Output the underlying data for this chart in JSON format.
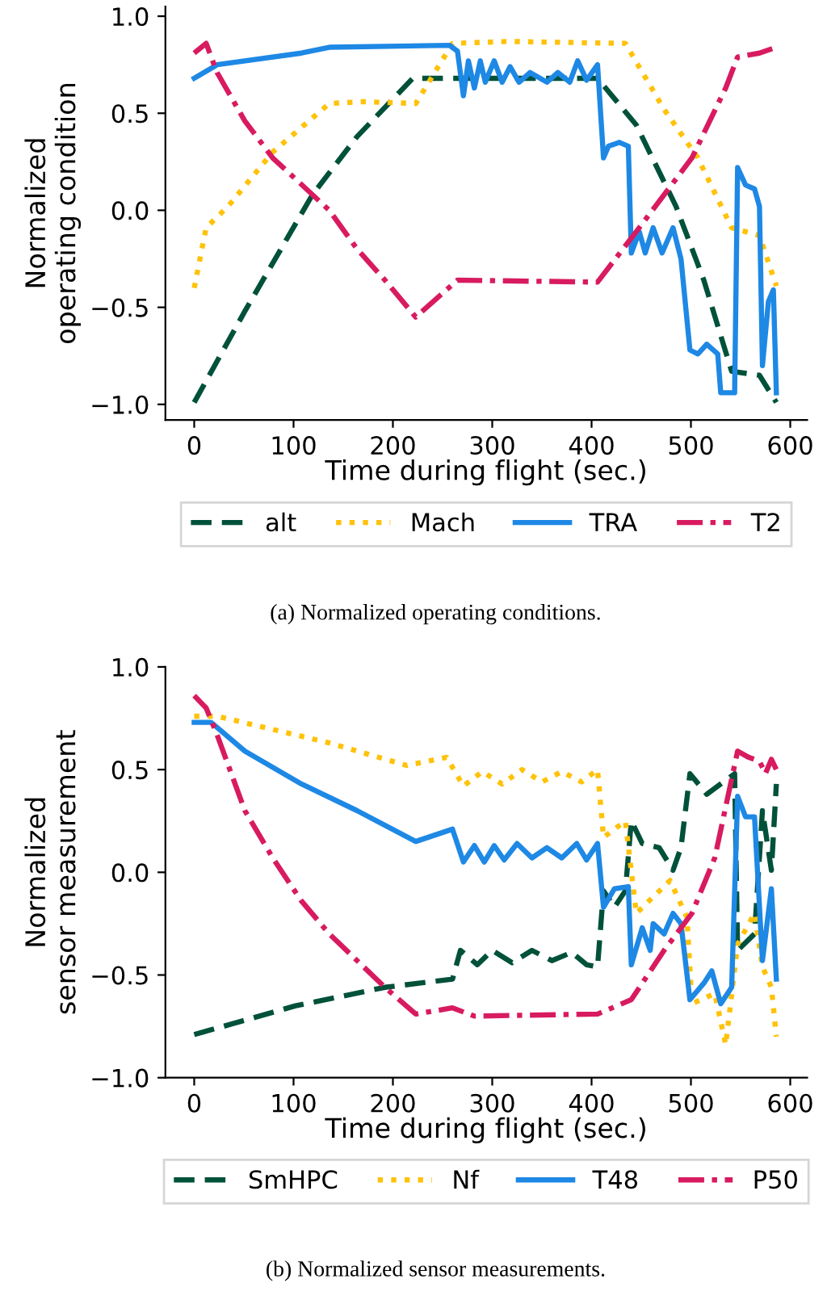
{
  "chart_data": [
    {
      "type": "line",
      "xlabel": "Time during flight (sec.)",
      "ylabel": "Normalized\noperating condition",
      "xlim": [
        -29,
        617
      ],
      "ylim": [
        -1.08,
        1.05
      ],
      "xticks": [
        0,
        100,
        200,
        300,
        400,
        500,
        600
      ],
      "yticks": [
        {
          "value": 1.0,
          "label": "1.0"
        },
        {
          "value": 0.5,
          "label": "0.5"
        },
        {
          "value": 0.0,
          "label": "0.0"
        },
        {
          "value": -0.5,
          "label": "−0.5"
        },
        {
          "value": -1.0,
          "label": "−1.0"
        }
      ],
      "grid": false,
      "legend": "bottom",
      "annotations": [
        "(a) Normalized operating conditions."
      ],
      "series": [
        {
          "name": "alt",
          "color": "#00513a",
          "line_style": "dashed",
          "x": [
            0,
            51,
            119,
            164,
            220,
            406,
            445,
            485,
            513,
            541,
            569,
            586
          ],
          "values": [
            -0.99,
            -0.52,
            0.08,
            0.38,
            0.68,
            0.68,
            0.44,
            0.02,
            -0.36,
            -0.83,
            -0.85,
            -0.99
          ]
        },
        {
          "name": "Mach",
          "color": "#ffc20a",
          "line_style": "dotted",
          "x": [
            0,
            12,
            34,
            79,
            136,
            170,
            223,
            260,
            316,
            434,
            473,
            507,
            541,
            569,
            586
          ],
          "values": [
            -0.4,
            -0.09,
            0.02,
            0.3,
            0.55,
            0.56,
            0.55,
            0.86,
            0.87,
            0.86,
            0.52,
            0.27,
            -0.09,
            -0.13,
            -0.39
          ]
        },
        {
          "name": "TRA",
          "color": "#1e88e5",
          "line_style": "solid",
          "x": [
            0,
            23,
            108,
            136,
            257,
            265,
            271,
            276,
            282,
            288,
            293,
            302,
            310,
            318,
            327,
            338,
            355,
            366,
            378,
            386,
            395,
            406,
            412,
            417,
            428,
            437,
            440,
            448,
            454,
            462,
            471,
            482,
            490,
            499,
            507,
            516,
            527,
            530,
            544,
            547,
            555,
            564,
            569,
            572,
            578,
            583,
            586
          ],
          "values": [
            0.68,
            0.75,
            0.81,
            0.84,
            0.85,
            0.82,
            0.59,
            0.77,
            0.63,
            0.77,
            0.66,
            0.77,
            0.66,
            0.74,
            0.66,
            0.71,
            0.66,
            0.71,
            0.66,
            0.77,
            0.67,
            0.75,
            0.27,
            0.33,
            0.35,
            0.33,
            -0.22,
            -0.11,
            -0.22,
            -0.09,
            -0.22,
            -0.09,
            -0.25,
            -0.72,
            -0.74,
            -0.69,
            -0.74,
            -0.94,
            -0.94,
            0.22,
            0.13,
            0.11,
            0.02,
            -0.8,
            -0.47,
            -0.41,
            -0.94
          ]
        },
        {
          "name": "T2",
          "color": "#d81b60",
          "line_style": "dashdot",
          "x": [
            0,
            12,
            23,
            51,
            79,
            136,
            164,
            192,
            223,
            265,
            406,
            445,
            501,
            535,
            547,
            569,
            586
          ],
          "values": [
            0.81,
            0.86,
            0.71,
            0.46,
            0.27,
            0.0,
            -0.2,
            -0.36,
            -0.55,
            -0.36,
            -0.37,
            -0.11,
            0.27,
            0.63,
            0.79,
            0.81,
            0.84
          ]
        }
      ]
    },
    {
      "type": "line",
      "xlabel": "Time during flight (sec.)",
      "ylabel": "Normalized\nsensor measurement",
      "xlim": [
        -29,
        617
      ],
      "ylim": [
        -1.0,
        1.0
      ],
      "xticks": [
        0,
        100,
        200,
        300,
        400,
        500,
        600
      ],
      "yticks": [
        {
          "value": 1.0,
          "label": "1.0"
        },
        {
          "value": 0.5,
          "label": "0.5"
        },
        {
          "value": 0.0,
          "label": "0.0"
        },
        {
          "value": -0.5,
          "label": "−0.5"
        },
        {
          "value": -1.0,
          "label": "−1.0"
        }
      ],
      "grid": false,
      "legend": "bottom",
      "annotations": [
        "(b) Normalized sensor measurements."
      ],
      "series": [
        {
          "name": "SmHPC",
          "color": "#00513a",
          "line_style": "dashed",
          "x": [
            0,
            102,
            192,
            260,
            268,
            285,
            300,
            320,
            340,
            360,
            380,
            395,
            406,
            412,
            423,
            434,
            440,
            451,
            468,
            482,
            490,
            499,
            516,
            530,
            544,
            547,
            564,
            572,
            581,
            586
          ],
          "values": [
            -0.79,
            -0.65,
            -0.56,
            -0.52,
            -0.38,
            -0.45,
            -0.38,
            -0.44,
            -0.38,
            -0.43,
            -0.39,
            -0.45,
            -0.46,
            -0.09,
            -0.17,
            -0.09,
            0.25,
            0.14,
            0.12,
            0.01,
            0.12,
            0.48,
            0.38,
            0.43,
            0.48,
            -0.38,
            -0.3,
            0.3,
            0.01,
            0.43
          ]
        },
        {
          "name": "Nf",
          "color": "#ffc20a",
          "line_style": "dotted",
          "x": [
            0,
            23,
            136,
            214,
            254,
            271,
            290,
            310,
            330,
            350,
            370,
            390,
            406,
            412,
            434,
            445,
            462,
            479,
            496,
            501,
            524,
            535,
            547,
            564,
            572,
            581,
            586
          ],
          "values": [
            0.76,
            0.76,
            0.63,
            0.52,
            0.56,
            0.42,
            0.49,
            0.43,
            0.5,
            0.44,
            0.49,
            0.44,
            0.5,
            0.17,
            0.25,
            -0.2,
            -0.12,
            -0.04,
            -0.22,
            -0.64,
            -0.59,
            -0.84,
            -0.35,
            -0.2,
            -0.46,
            -0.56,
            -0.8
          ]
        },
        {
          "name": "T48",
          "color": "#1e88e5",
          "line_style": "solid",
          "x": [
            0,
            17,
            51,
            108,
            164,
            223,
            260,
            271,
            282,
            292,
            302,
            312,
            325,
            340,
            355,
            370,
            385,
            395,
            406,
            412,
            423,
            437,
            440,
            451,
            459,
            462,
            473,
            482,
            490,
            499,
            513,
            521,
            530,
            541,
            547,
            555,
            564,
            572,
            581,
            586
          ],
          "values": [
            0.73,
            0.73,
            0.59,
            0.43,
            0.3,
            0.15,
            0.21,
            0.05,
            0.13,
            0.05,
            0.13,
            0.06,
            0.14,
            0.07,
            0.12,
            0.07,
            0.14,
            0.06,
            0.14,
            -0.17,
            -0.08,
            -0.07,
            -0.45,
            -0.27,
            -0.38,
            -0.25,
            -0.3,
            -0.2,
            -0.25,
            -0.62,
            -0.54,
            -0.48,
            -0.64,
            -0.56,
            0.37,
            0.27,
            0.27,
            -0.43,
            -0.08,
            -0.52
          ]
        },
        {
          "name": "P50",
          "color": "#d81b60",
          "line_style": "dashdot",
          "x": [
            0,
            12,
            23,
            51,
            79,
            108,
            136,
            192,
            223,
            260,
            282,
            406,
            440,
            473,
            501,
            524,
            547,
            558,
            569,
            575,
            581,
            586
          ],
          "values": [
            0.86,
            0.8,
            0.67,
            0.3,
            0.07,
            -0.14,
            -0.3,
            -0.56,
            -0.69,
            -0.66,
            -0.7,
            -0.69,
            -0.62,
            -0.38,
            -0.2,
            0.07,
            0.59,
            0.56,
            0.54,
            0.48,
            0.55,
            0.5
          ]
        }
      ]
    }
  ]
}
